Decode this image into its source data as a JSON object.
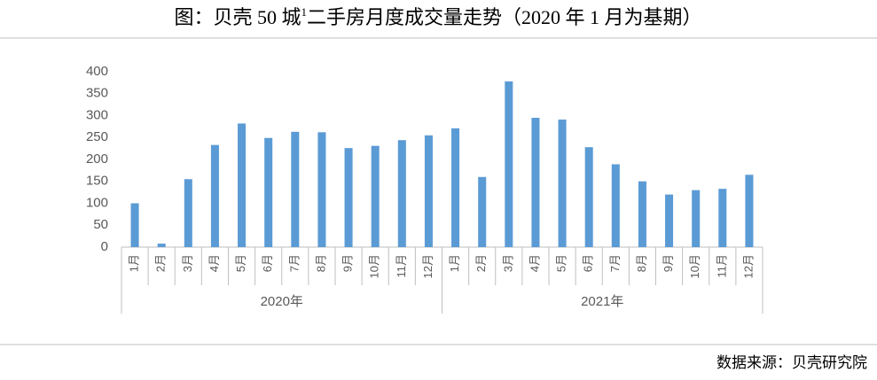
{
  "chart_data": {
    "type": "bar",
    "title": [
      "图：贝壳 50 城",
      "1",
      "二手房月度成交量走势（2020 年 1 月为基期）"
    ],
    "source": "数据来源：贝壳研究院",
    "categories": [
      "1月",
      "2月",
      "3月",
      "4月",
      "5月",
      "6月",
      "7月",
      "8月",
      "9月",
      "10月",
      "11月",
      "12月",
      "1月",
      "2月",
      "3月",
      "4月",
      "5月",
      "6月",
      "7月",
      "8月",
      "9月",
      "10月",
      "11月",
      "12月"
    ],
    "category_groups": [
      "2020年",
      "2021年"
    ],
    "values": [
      100,
      8,
      155,
      233,
      282,
      249,
      263,
      262,
      226,
      231,
      244,
      255,
      271,
      160,
      378,
      295,
      291,
      228,
      189,
      150,
      120,
      130,
      133,
      165
    ],
    "color": "#5b9bd5",
    "ylim": [
      0,
      400
    ],
    "yticks": [
      0,
      50,
      100,
      150,
      200,
      250,
      300,
      350,
      400
    ],
    "grid": false
  }
}
